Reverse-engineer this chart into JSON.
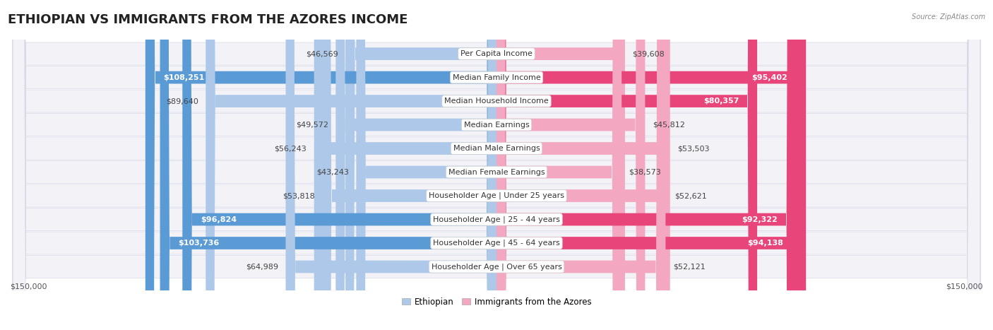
{
  "title": "ETHIOPIAN VS IMMIGRANTS FROM THE AZORES INCOME",
  "source": "Source: ZipAtlas.com",
  "categories": [
    "Per Capita Income",
    "Median Family Income",
    "Median Household Income",
    "Median Earnings",
    "Median Male Earnings",
    "Median Female Earnings",
    "Householder Age | Under 25 years",
    "Householder Age | 25 - 44 years",
    "Householder Age | 45 - 64 years",
    "Householder Age | Over 65 years"
  ],
  "ethiopian_values": [
    46569,
    108251,
    89640,
    49572,
    56243,
    43243,
    53818,
    96824,
    103736,
    64989
  ],
  "azores_values": [
    39608,
    95402,
    80357,
    45812,
    53503,
    38573,
    52621,
    92322,
    94138,
    52121
  ],
  "ethiopian_labels": [
    "$46,569",
    "$108,251",
    "$89,640",
    "$49,572",
    "$56,243",
    "$43,243",
    "$53,818",
    "$96,824",
    "$103,736",
    "$64,989"
  ],
  "azores_labels": [
    "$39,608",
    "$95,402",
    "$80,357",
    "$45,812",
    "$53,503",
    "$38,573",
    "$52,621",
    "$92,322",
    "$94,138",
    "$52,121"
  ],
  "eth_is_dark": [
    false,
    true,
    false,
    false,
    false,
    false,
    false,
    true,
    true,
    false
  ],
  "az_is_dark": [
    false,
    true,
    true,
    false,
    false,
    false,
    false,
    true,
    true,
    false
  ],
  "ethiopian_color_light": "#adc8e8",
  "ethiopian_color_dark": "#5b9bd5",
  "azores_color_light": "#f4a7c0",
  "azores_color_dark": "#e8457a",
  "row_bg_color": "#f2f2f7",
  "row_border_color": "#d8d8e8",
  "max_value": 150000,
  "legend_ethiopian": "Ethiopian",
  "legend_azores": "Immigrants from the Azores",
  "title_fontsize": 13,
  "label_fontsize": 8,
  "category_fontsize": 8,
  "axis_label_fontsize": 8,
  "dark_label_threshold": 70000
}
